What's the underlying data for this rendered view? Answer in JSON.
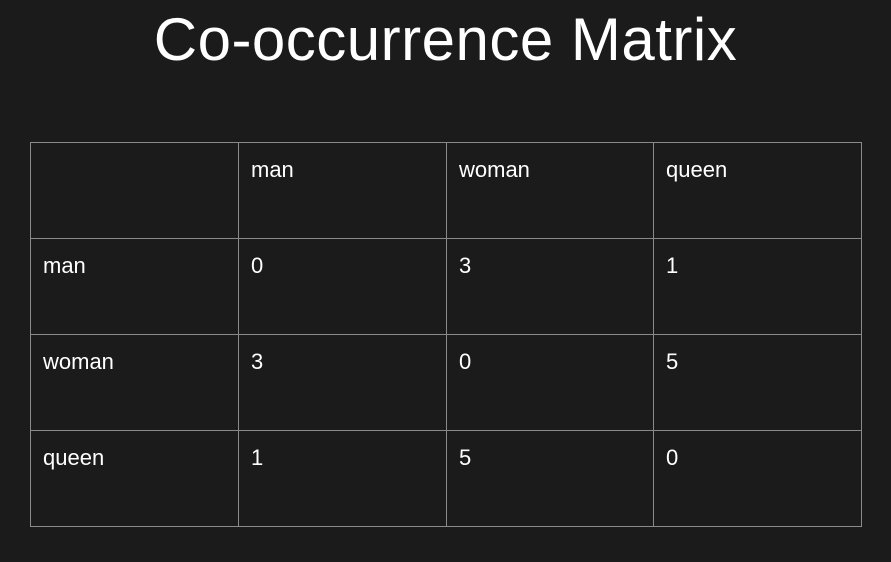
{
  "slide": {
    "title": "Co-occurrence Matrix"
  },
  "matrix": {
    "corner": "",
    "column_headers": [
      "man",
      "woman",
      "queen"
    ],
    "rows": [
      {
        "label": "man",
        "cells": [
          "0",
          "3",
          "1"
        ]
      },
      {
        "label": "woman",
        "cells": [
          "3",
          "0",
          "5"
        ]
      },
      {
        "label": "queen",
        "cells": [
          "1",
          "5",
          "0"
        ]
      }
    ]
  },
  "colors": {
    "background": "#1b1b1b",
    "text": "#ffffff",
    "grid_lines": "#8a8a8a"
  }
}
